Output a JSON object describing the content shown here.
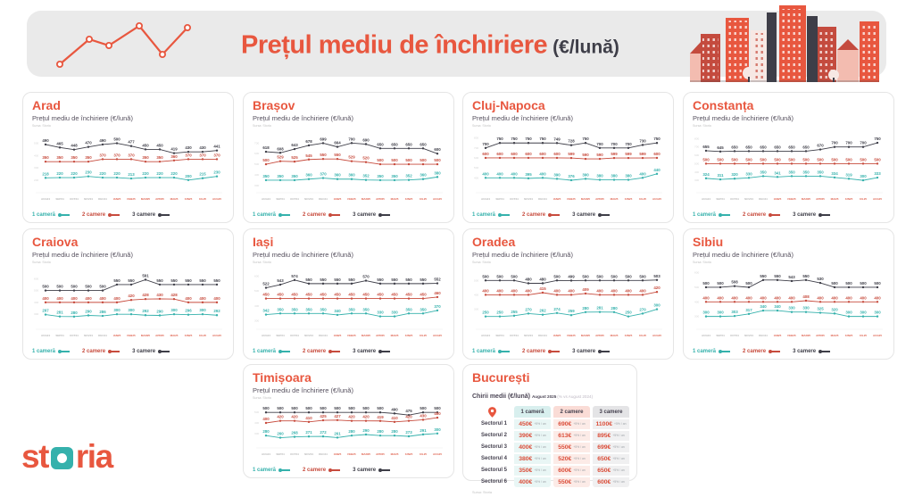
{
  "header": {
    "title": "Prețul mediu de închiriere",
    "title_suffix": "(€/lună)"
  },
  "chart_subtitle": "Prețul mediu de închiriere (€/lună)",
  "source_label": "Sursa: Storia",
  "months": [
    "AUG24",
    "SEP24",
    "OCT24",
    "NOV24",
    "DEC24",
    "IAN25",
    "FEB25",
    "MAR25",
    "APR25",
    "MAI25",
    "IUN25",
    "IUL25",
    "AUG25"
  ],
  "months_highlight_from": 5,
  "legend": {
    "items": [
      {
        "label": "1 cameră",
        "color_key": "teal"
      },
      {
        "label": "2 camere",
        "color_key": "red"
      },
      {
        "label": "3 camere",
        "color_key": "dark"
      }
    ]
  },
  "colors": {
    "accent": "#E8573F",
    "teal": "#35B1AC",
    "red": "#C74B3D",
    "dark": "#3E3E48",
    "banner_bg": "#EAEAEA",
    "month_past": "#B8B8B8",
    "month_recent": "#DF6552",
    "tick": "#D6D6D6",
    "col1_bg": "#D8EFEE",
    "col2_bg": "#FADCD6",
    "col3_bg": "#E4E4E6",
    "col1_cell": "#E9F6F5",
    "col2_cell": "#FCEBE7",
    "col3_cell": "#F0F0F1"
  },
  "logo": {
    "part1": "st",
    "part2": "ria"
  },
  "chart_data": [
    {
      "type": "line",
      "title": "Arad",
      "series": [
        {
          "name": "1 cameră",
          "values": [
            218,
            220,
            220,
            230,
            220,
            220,
            213,
            220,
            220,
            220,
            200,
            215,
            230
          ]
        },
        {
          "name": "2 camere",
          "values": [
            350,
            350,
            350,
            350,
            370,
            370,
            370,
            350,
            350,
            360,
            370,
            370,
            370
          ]
        },
        {
          "name": "3 camere",
          "values": [
            490,
            465,
            448,
            470,
            490,
            500,
            477,
            450,
            450,
            419,
            430,
            430,
            441
          ]
        }
      ]
    },
    {
      "type": "line",
      "title": "Brașov",
      "series": [
        {
          "name": "1 cameră",
          "values": [
            350,
            350,
            350,
            360,
            370,
            360,
            360,
            352,
            350,
            350,
            352,
            360,
            380
          ]
        },
        {
          "name": "2 camere",
          "values": [
            500,
            529,
            525,
            545,
            550,
            550,
            529,
            520,
            500,
            500,
            500,
            500,
            500
          ]
        },
        {
          "name": "3 camere",
          "values": [
            618,
            608,
            643,
            678,
            699,
            664,
            700,
            690,
            650,
            650,
            650,
            650,
            600
          ]
        }
      ]
    },
    {
      "type": "line",
      "title": "Cluj-Napoca",
      "series": [
        {
          "name": "1 cameră",
          "values": [
            400,
            400,
            400,
            395,
            400,
            390,
            376,
            390,
            380,
            380,
            380,
            400,
            440
          ]
        },
        {
          "name": "2 camere",
          "values": [
            600,
            600,
            600,
            600,
            600,
            600,
            599,
            590,
            590,
            599,
            599,
            599,
            600
          ]
        },
        {
          "name": "3 camere",
          "values": [
            700,
            750,
            750,
            750,
            750,
            749,
            728,
            750,
            700,
            700,
            700,
            730,
            750
          ]
        }
      ]
    },
    {
      "type": "line",
      "title": "Constanța",
      "series": [
        {
          "name": "1 cameră",
          "values": [
            324,
            311,
            320,
            330,
            350,
            341,
            350,
            350,
            350,
            334,
            319,
            300,
            333
          ]
        },
        {
          "name": "2 camere",
          "values": [
            500,
            500,
            500,
            500,
            500,
            500,
            500,
            500,
            500,
            500,
            500,
            500,
            500
          ]
        },
        {
          "name": "3 camere",
          "values": [
            655,
            645,
            650,
            650,
            650,
            650,
            650,
            650,
            670,
            700,
            700,
            700,
            750
          ]
        }
      ]
    },
    {
      "type": "line",
      "title": "Craiova",
      "series": [
        {
          "name": "1 cameră",
          "values": [
            297,
            281,
            280,
            290,
            286,
            300,
            300,
            292,
            290,
            300,
            296,
            300,
            292
          ]
        },
        {
          "name": "2 camere",
          "values": [
            400,
            400,
            400,
            400,
            400,
            400,
            420,
            428,
            430,
            428,
            400,
            400,
            400
          ]
        },
        {
          "name": "3 camere",
          "values": [
            500,
            500,
            500,
            500,
            500,
            550,
            550,
            591,
            550,
            550,
            550,
            550,
            550
          ]
        }
      ]
    },
    {
      "type": "line",
      "title": "Iași",
      "series": [
        {
          "name": "1 cameră",
          "values": [
            342,
            350,
            350,
            350,
            350,
            340,
            350,
            350,
            330,
            330,
            350,
            350,
            370
          ]
        },
        {
          "name": "2 camere",
          "values": [
            450,
            450,
            450,
            450,
            450,
            450,
            450,
            450,
            450,
            450,
            450,
            450,
            460
          ]
        },
        {
          "name": "3 camere",
          "values": [
            522,
            543,
            574,
            550,
            550,
            550,
            550,
            570,
            550,
            550,
            550,
            550,
            552
          ]
        }
      ]
    },
    {
      "type": "line",
      "title": "Oradea",
      "series": [
        {
          "name": "1 cameră",
          "values": [
            250,
            250,
            255,
            270,
            262,
            274,
            259,
            280,
            281,
            280,
            250,
            270,
            300
          ]
        },
        {
          "name": "2 camere",
          "values": [
            400,
            400,
            400,
            400,
            415,
            400,
            400,
            409,
            400,
            400,
            400,
            400,
            420
          ]
        },
        {
          "name": "3 camere",
          "values": [
            500,
            500,
            500,
            480,
            480,
            500,
            499,
            500,
            500,
            500,
            500,
            500,
            503
          ]
        }
      ]
    },
    {
      "type": "line",
      "title": "Sibiu",
      "series": [
        {
          "name": "1 cameră",
          "values": [
            300,
            300,
            303,
            317,
            340,
            340,
            330,
            330,
            325,
            320,
            300,
            300,
            300
          ]
        },
        {
          "name": "2 camere",
          "values": [
            400,
            400,
            400,
            400,
            400,
            400,
            400,
            408,
            400,
            400,
            400,
            400,
            400
          ]
        },
        {
          "name": "3 camere",
          "values": [
            500,
            500,
            508,
            500,
            550,
            550,
            543,
            550,
            530,
            500,
            500,
            500,
            500
          ]
        }
      ]
    },
    {
      "type": "line",
      "title": "Timișoara",
      "series": [
        {
          "name": "1 cameră",
          "values": [
            280,
            260,
            268,
            271,
            272,
            261,
            280,
            290,
            280,
            280,
            273,
            291,
            300
          ]
        },
        {
          "name": "2 camere",
          "values": [
            400,
            420,
            420,
            410,
            425,
            427,
            420,
            420,
            419,
            410,
            420,
            430,
            450
          ]
        },
        {
          "name": "3 camere",
          "values": [
            500,
            500,
            500,
            500,
            500,
            500,
            500,
            500,
            500,
            490,
            475,
            500,
            500
          ]
        }
      ]
    },
    {
      "type": "table",
      "title": "București",
      "subtitle": "Chirii medii (€/lună)",
      "subtitle_period": "August 2025",
      "subtitle_note": "(% vs August 2024)",
      "columns": [
        "1 cameră",
        "2 camere",
        "3 camere"
      ],
      "rows": [
        {
          "label": "Sectorul 1",
          "values": [
            "450€",
            "690€",
            "1100€"
          ],
          "deltas": [
            "+5% / an",
            "+5% / an",
            "+5% / an"
          ]
        },
        {
          "label": "Sectorul 2",
          "values": [
            "390€",
            "613€",
            "895€"
          ],
          "deltas": [
            "+5% / an",
            "+5% / an",
            "+5% / an"
          ]
        },
        {
          "label": "Sectorul 3",
          "values": [
            "400€",
            "550€",
            "699€"
          ],
          "deltas": [
            "+5% / an",
            "+5% / an",
            "+5% / an"
          ]
        },
        {
          "label": "Sectorul 4",
          "values": [
            "380€",
            "520€",
            "650€"
          ],
          "deltas": [
            "+5% / an",
            "+5% / an",
            "+5% / an"
          ]
        },
        {
          "label": "Sectorul 5",
          "values": [
            "350€",
            "600€",
            "650€"
          ],
          "deltas": [
            "+5% / an",
            "+5% / an",
            "+5% / an"
          ]
        },
        {
          "label": "Sectorul 6",
          "values": [
            "400€",
            "550€",
            "600€"
          ],
          "deltas": [
            "+5% / an",
            "+5% / an",
            "+5% / an"
          ]
        }
      ],
      "source": "Sursa: Storia"
    }
  ]
}
